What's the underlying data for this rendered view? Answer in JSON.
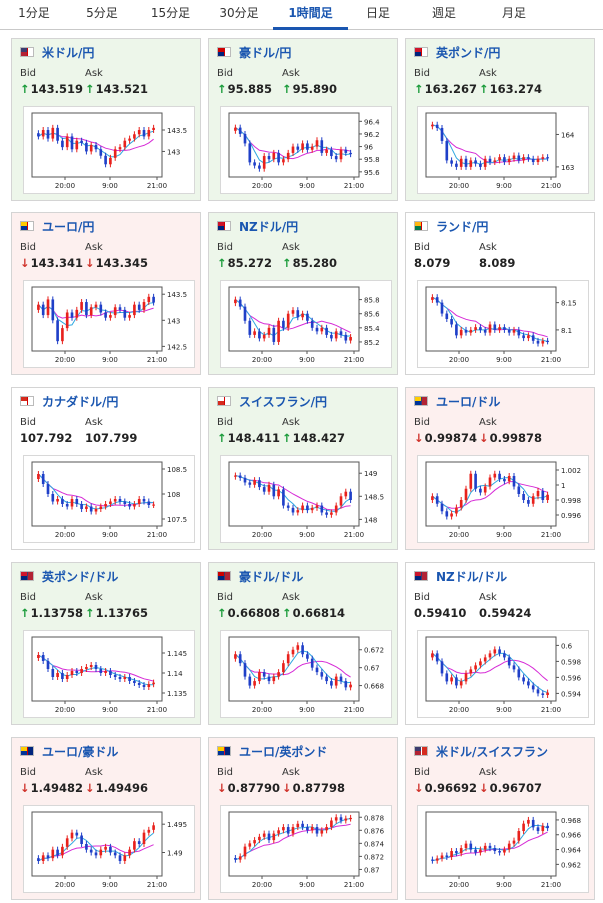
{
  "tabs": [
    {
      "label": "1分足",
      "active": false
    },
    {
      "label": "5分足",
      "active": false
    },
    {
      "label": "15分足",
      "active": false
    },
    {
      "label": "30分足",
      "active": false
    },
    {
      "label": "1時間足",
      "active": true
    },
    {
      "label": "日足",
      "active": false
    },
    {
      "label": "週足",
      "active": false
    },
    {
      "label": "月足",
      "active": false
    }
  ],
  "colors": {
    "up_arrow": "#1a9b3a",
    "down_arrow": "#d0342c",
    "candle_up": "#e8211c",
    "candle_down": "#1f3fc8",
    "ma_long": "#d62bd6",
    "ma_short": "#2fa8e0",
    "pair_text": "#1a56b0"
  },
  "labels": {
    "bid": "Bid",
    "ask": "Ask"
  },
  "cards": [
    {
      "pair": "米ドル/円",
      "flag": "us-jp",
      "bid": "143.519",
      "ask": "143.521",
      "direction": "up",
      "x_ticks": [
        "20:00",
        "9:00",
        "21:00"
      ],
      "y_ticks": [
        "143.5",
        "143"
      ],
      "y_range": [
        142.45,
        143.85
      ],
      "closes": [
        143.35,
        143.5,
        143.3,
        143.55,
        143.25,
        143.1,
        143.35,
        143.05,
        143.25,
        143.2,
        143.0,
        143.15,
        143.05,
        142.9,
        142.7,
        142.85,
        143.05,
        143.1,
        143.25,
        143.3,
        143.4,
        143.5,
        143.35,
        143.5,
        143.55
      ]
    },
    {
      "pair": "豪ドル/円",
      "flag": "au-jp",
      "bid": "95.885",
      "ask": "95.890",
      "direction": "up",
      "x_ticks": [
        "20:00",
        "9:00",
        "21:00"
      ],
      "y_ticks": [
        "96.4",
        "96.2",
        "96",
        "95.8",
        "95.6"
      ],
      "y_range": [
        95.55,
        96.5
      ],
      "closes": [
        96.3,
        96.2,
        96.05,
        95.75,
        95.7,
        95.65,
        95.85,
        95.8,
        95.9,
        95.75,
        95.8,
        95.9,
        96.0,
        95.95,
        96.05,
        95.95,
        96.0,
        96.1,
        95.9,
        95.95,
        95.85,
        95.8,
        95.95,
        95.9,
        95.88
      ]
    },
    {
      "pair": "英ポンド/円",
      "flag": "gb-jp",
      "bid": "163.267",
      "ask": "163.274",
      "direction": "up",
      "x_ticks": [
        "20:00",
        "9:00",
        "21:00"
      ],
      "y_ticks": [
        "164",
        "163"
      ],
      "y_range": [
        162.75,
        164.6
      ],
      "closes": [
        164.3,
        164.2,
        163.8,
        163.2,
        163.1,
        163.0,
        163.25,
        163.0,
        163.2,
        163.1,
        163.0,
        163.25,
        163.15,
        163.2,
        163.3,
        163.15,
        163.25,
        163.35,
        163.2,
        163.3,
        163.25,
        163.15,
        163.25,
        163.3,
        163.27
      ]
    },
    {
      "pair": "ユーロ/円",
      "flag": "eu-jp",
      "bid": "143.341",
      "ask": "143.345",
      "direction": "down",
      "x_ticks": [
        "20:00",
        "9:00",
        "21:00"
      ],
      "y_ticks": [
        "143.5",
        "143",
        "142.5"
      ],
      "y_range": [
        142.45,
        143.6
      ],
      "closes": [
        143.3,
        143.1,
        143.4,
        143.0,
        142.6,
        142.85,
        143.15,
        143.05,
        143.2,
        143.35,
        143.1,
        143.25,
        143.3,
        143.15,
        143.05,
        143.1,
        143.25,
        143.2,
        143.05,
        143.1,
        143.3,
        143.2,
        143.35,
        143.45,
        143.34
      ]
    },
    {
      "pair": "NZドル/円",
      "flag": "nz-jp",
      "bid": "85.272",
      "ask": "85.280",
      "direction": "up",
      "x_ticks": [
        "20:00",
        "9:00",
        "21:00"
      ],
      "y_ticks": [
        "85.8",
        "85.6",
        "85.4",
        "85.2"
      ],
      "y_range": [
        85.1,
        85.95
      ],
      "closes": [
        85.8,
        85.7,
        85.5,
        85.3,
        85.35,
        85.25,
        85.3,
        85.4,
        85.2,
        85.5,
        85.4,
        85.6,
        85.65,
        85.55,
        85.6,
        85.5,
        85.4,
        85.35,
        85.4,
        85.3,
        85.25,
        85.35,
        85.3,
        85.22,
        85.27
      ]
    },
    {
      "pair": "ランド/円",
      "flag": "za-jp",
      "bid": "8.079",
      "ask": "8.089",
      "direction": "flat",
      "x_ticks": [
        "20:00",
        "9:00",
        "21:00"
      ],
      "y_ticks": [
        "8.15",
        "8.1"
      ],
      "y_range": [
        8.065,
        8.175
      ],
      "closes": [
        8.16,
        8.15,
        8.13,
        8.12,
        8.11,
        8.09,
        8.1,
        8.095,
        8.1,
        8.105,
        8.1,
        8.095,
        8.11,
        8.1,
        8.105,
        8.1,
        8.095,
        8.1,
        8.09,
        8.085,
        8.09,
        8.08,
        8.075,
        8.08,
        8.079
      ]
    },
    {
      "pair": "カナダドル/円",
      "flag": "ca-jp",
      "bid": "107.792",
      "ask": "107.799",
      "direction": "flat",
      "x_ticks": [
        "20:00",
        "9:00",
        "21:00"
      ],
      "y_ticks": [
        "108.5",
        "108",
        "107.5"
      ],
      "y_range": [
        107.4,
        108.6
      ],
      "closes": [
        108.4,
        108.2,
        108.0,
        107.85,
        107.9,
        107.8,
        107.75,
        107.9,
        107.8,
        107.7,
        107.75,
        107.65,
        107.7,
        107.75,
        107.8,
        107.85,
        107.9,
        107.85,
        107.8,
        107.75,
        107.8,
        107.9,
        107.85,
        107.78,
        107.79
      ]
    },
    {
      "pair": "スイスフラン/円",
      "flag": "ch-jp",
      "bid": "148.411",
      "ask": "148.427",
      "direction": "up",
      "x_ticks": [
        "20:00",
        "9:00",
        "21:00"
      ],
      "y_ticks": [
        "149",
        "148.5",
        "148"
      ],
      "y_range": [
        147.9,
        149.2
      ],
      "closes": [
        148.95,
        148.9,
        148.8,
        148.75,
        148.85,
        148.7,
        148.6,
        148.75,
        148.5,
        148.65,
        148.3,
        148.25,
        148.15,
        148.2,
        148.3,
        148.2,
        148.25,
        148.3,
        148.15,
        148.1,
        148.15,
        148.3,
        148.5,
        148.6,
        148.42
      ]
    },
    {
      "pair": "ユーロ/ドル",
      "flag": "eu-us",
      "bid": "0.99874",
      "ask": "0.99878",
      "direction": "down",
      "x_ticks": [
        "20:00",
        "9:00",
        "21:00"
      ],
      "y_ticks": [
        "1.002",
        "1",
        "0.998",
        "0.996"
      ],
      "y_range": [
        0.9948,
        1.0028
      ],
      "closes": [
        0.9985,
        0.9975,
        0.9965,
        0.9958,
        0.9962,
        0.997,
        0.998,
        0.9995,
        1.0015,
        0.9995,
        0.999,
        0.9998,
        1.001,
        1.0015,
        1.0008,
        1.0005,
        1.0012,
        0.9998,
        0.9988,
        0.998,
        0.9975,
        0.9985,
        0.9992,
        0.998,
        0.9987
      ]
    },
    {
      "pair": "英ポンド/ドル",
      "flag": "gb-us",
      "bid": "1.13758",
      "ask": "1.13765",
      "direction": "up",
      "x_ticks": [
        "20:00",
        "9:00",
        "21:00"
      ],
      "y_ticks": [
        "1.145",
        "1.14",
        "1.135"
      ],
      "y_range": [
        1.1335,
        1.1485
      ],
      "closes": [
        1.1445,
        1.143,
        1.141,
        1.139,
        1.14,
        1.1385,
        1.1395,
        1.1405,
        1.14,
        1.141,
        1.1415,
        1.142,
        1.141,
        1.14,
        1.1405,
        1.1395,
        1.139,
        1.1385,
        1.139,
        1.138,
        1.1375,
        1.137,
        1.1365,
        1.1372,
        1.1376
      ]
    },
    {
      "pair": "豪ドル/ドル",
      "flag": "au-us",
      "bid": "0.66808",
      "ask": "0.66814",
      "direction": "up",
      "x_ticks": [
        "20:00",
        "9:00",
        "21:00"
      ],
      "y_ticks": [
        "0.672",
        "0.67",
        "0.668"
      ],
      "y_range": [
        0.6665,
        0.6732
      ],
      "closes": [
        0.6715,
        0.6705,
        0.669,
        0.668,
        0.6685,
        0.6695,
        0.669,
        0.6685,
        0.669,
        0.6695,
        0.6705,
        0.6715,
        0.672,
        0.6725,
        0.6715,
        0.671,
        0.67,
        0.6695,
        0.669,
        0.6685,
        0.668,
        0.669,
        0.6685,
        0.6678,
        0.6681
      ]
    },
    {
      "pair": "NZドル/ドル",
      "flag": "nz-us",
      "bid": "0.59410",
      "ask": "0.59424",
      "direction": "flat",
      "x_ticks": [
        "20:00",
        "9:00",
        "21:00"
      ],
      "y_ticks": [
        "0.6",
        "0.598",
        "0.596",
        "0.594"
      ],
      "y_range": [
        0.5933,
        0.6008
      ],
      "closes": [
        0.599,
        0.598,
        0.5965,
        0.5955,
        0.596,
        0.595,
        0.5955,
        0.5965,
        0.597,
        0.5975,
        0.598,
        0.5985,
        0.599,
        0.5995,
        0.599,
        0.5985,
        0.5975,
        0.597,
        0.596,
        0.5955,
        0.595,
        0.5945,
        0.594,
        0.5938,
        0.5941
      ]
    },
    {
      "pair": "ユーロ/豪ドル",
      "flag": "eu-au",
      "bid": "1.49482",
      "ask": "1.49496",
      "direction": "down",
      "x_ticks": [
        "20:00",
        "9:00",
        "21:00"
      ],
      "y_ticks": [
        "1.495",
        "1.49"
      ],
      "y_range": [
        1.4862,
        1.4968
      ],
      "closes": [
        1.4885,
        1.4895,
        1.489,
        1.4905,
        1.4895,
        1.491,
        1.4925,
        1.4935,
        1.493,
        1.4915,
        1.4905,
        1.49,
        1.4895,
        1.4905,
        1.491,
        1.49,
        1.4895,
        1.4885,
        1.4895,
        1.4905,
        1.492,
        1.4915,
        1.4935,
        1.494,
        1.4948
      ]
    },
    {
      "pair": "ユーロ/英ポンド",
      "flag": "eu-gb",
      "bid": "0.87790",
      "ask": "0.87798",
      "direction": "down",
      "x_ticks": [
        "20:00",
        "9:00",
        "21:00"
      ],
      "y_ticks": [
        "0.878",
        "0.876",
        "0.874",
        "0.872",
        "0.87"
      ],
      "y_range": [
        0.8693,
        0.8785
      ],
      "closes": [
        0.8715,
        0.872,
        0.8735,
        0.874,
        0.8745,
        0.875,
        0.8755,
        0.8745,
        0.8755,
        0.876,
        0.8765,
        0.8755,
        0.8765,
        0.877,
        0.8765,
        0.876,
        0.8765,
        0.8755,
        0.876,
        0.8765,
        0.8775,
        0.878,
        0.8775,
        0.8778,
        0.8779
      ]
    },
    {
      "pair": "米ドル/スイスフラン",
      "flag": "us-ch",
      "bid": "0.96692",
      "ask": "0.96707",
      "direction": "down",
      "x_ticks": [
        "20:00",
        "9:00",
        "21:00"
      ],
      "y_ticks": [
        "0.968",
        "0.966",
        "0.964",
        "0.962"
      ],
      "y_range": [
        0.9607,
        0.9688
      ],
      "closes": [
        0.9625,
        0.9628,
        0.9632,
        0.963,
        0.9638,
        0.9635,
        0.9642,
        0.9648,
        0.964,
        0.9636,
        0.964,
        0.9645,
        0.9642,
        0.9638,
        0.9636,
        0.964,
        0.9648,
        0.9652,
        0.9665,
        0.9675,
        0.968,
        0.967,
        0.9665,
        0.9672,
        0.9669
      ]
    }
  ]
}
